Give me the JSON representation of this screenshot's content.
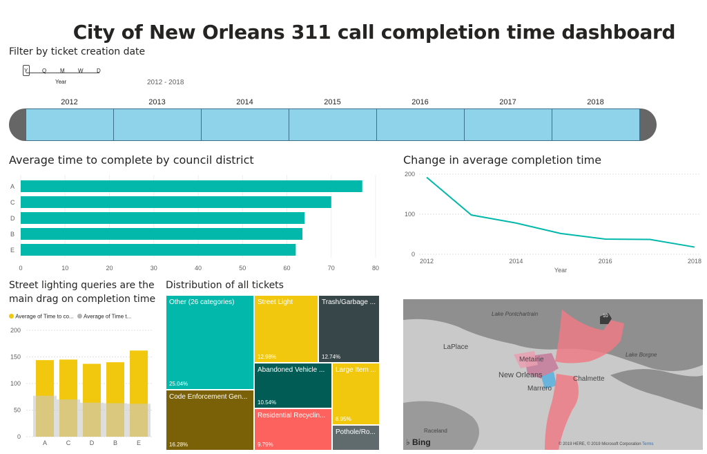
{
  "title": "City of New Orleans 311 call completion time dashboard",
  "filter": {
    "label": "Filter by ticket creation date",
    "levels": [
      "Y",
      "Q",
      "M",
      "W",
      "D"
    ],
    "level_selected": "Year",
    "range": "2012 - 2018",
    "years": [
      "2012",
      "2013",
      "2014",
      "2015",
      "2016",
      "2017",
      "2018"
    ]
  },
  "district_chart": {
    "title": "Average time to complete by council district",
    "chart_data": {
      "type": "bar",
      "orientation": "horizontal",
      "categories": [
        "A",
        "C",
        "D",
        "B",
        "E"
      ],
      "values": [
        77,
        70,
        64,
        63.5,
        62
      ],
      "xlim": [
        0,
        80
      ],
      "xticks": [
        "0",
        "10",
        "20",
        "30",
        "40",
        "50",
        "60",
        "70",
        "80"
      ],
      "color": "#01b8aa"
    }
  },
  "change_chart": {
    "title": "Change in average completion time",
    "chart_data": {
      "type": "line",
      "x": [
        2012,
        2013,
        2014,
        2015,
        2016,
        2017,
        2018
      ],
      "values": [
        192,
        98,
        78,
        52,
        38,
        37,
        18
      ],
      "ylim": [
        0,
        200
      ],
      "yticks": [
        "0",
        "100",
        "200"
      ],
      "xticks": [
        "2012",
        "2014",
        "2016",
        "2018"
      ],
      "xlabel": "Year",
      "color": "#01b8aa"
    }
  },
  "street_chart": {
    "title_line1": "Street lighting queries are the",
    "title_line2": "main drag on completion time",
    "legend": [
      "Average of Time to co...",
      "Average of Time t..."
    ],
    "chart_data": {
      "type": "bar",
      "categories": [
        "A",
        "C",
        "D",
        "B",
        "E"
      ],
      "series": [
        {
          "name": "Average of Time to co...",
          "values": [
            144,
            145,
            137,
            140,
            162
          ],
          "color": "#f2c80f"
        },
        {
          "name": "Average of Time t...",
          "values": [
            77,
            70,
            64,
            63,
            62
          ],
          "color": "#c8c8c8"
        }
      ],
      "ylim": [
        0,
        200
      ],
      "yticks": [
        "0",
        "50",
        "100",
        "150",
        "200"
      ]
    }
  },
  "treemap": {
    "title": "Distribution of all tickets",
    "cells": [
      {
        "label": "Other (26 categories)",
        "pct": "25.04%",
        "color": "#01b8aa"
      },
      {
        "label": "Code Enforcement Gen...",
        "pct": "16.28%",
        "color": "#7a6108"
      },
      {
        "label": "Street Light",
        "pct": "12.98%",
        "color": "#f2c80f"
      },
      {
        "label": "Trash/Garbage ...",
        "pct": "12.74%",
        "color": "#374649"
      },
      {
        "label": "Abandoned Vehicle ...",
        "pct": "10.54%",
        "color": "#005c55"
      },
      {
        "label": "Large Item ...",
        "pct": "8.95%",
        "color": "#f2c80f"
      },
      {
        "label": "Residential Recyclin...",
        "pct": "9.79%",
        "color": "#fd625e"
      },
      {
        "label": "Pothole/Ro...",
        "pct": "",
        "color": "#5f6b6d"
      }
    ]
  },
  "map": {
    "labels": [
      "Lake Pontchartrain",
      "LaPlace",
      "Metairie",
      "New Orleans",
      "Marrero",
      "Chalmette",
      "Lake Borgne",
      "Raceland",
      "10"
    ],
    "brand": "Bing",
    "copyright": "© 2019 HERE, © 2019 Microsoft Corporation",
    "terms": "Terms"
  }
}
